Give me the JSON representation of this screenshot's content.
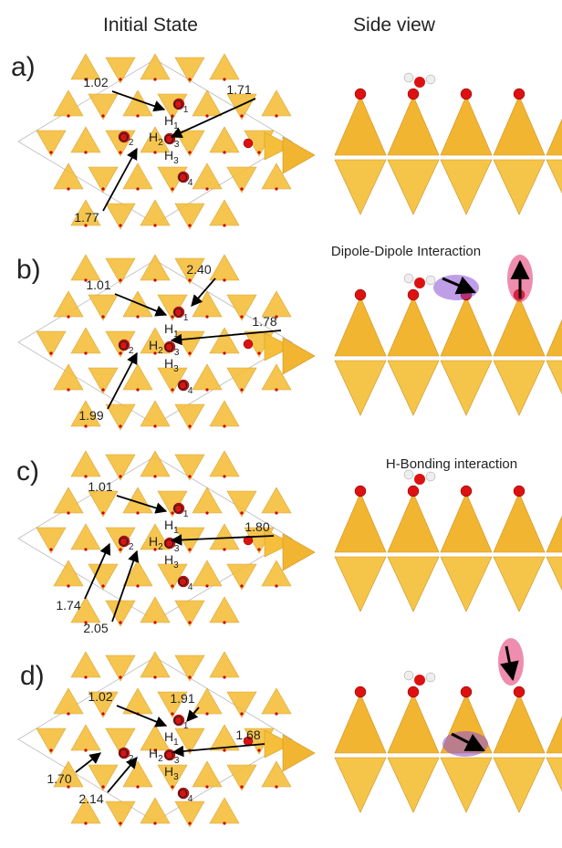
{
  "header": {
    "left": "Initial State",
    "right": "Side view"
  },
  "panels": [
    {
      "label": "a)",
      "distances": [
        "1.02",
        "1.71",
        "1.77"
      ],
      "atoms": [
        {
          "element": "O",
          "sub": "1"
        },
        {
          "element": "H",
          "sub": "1"
        },
        {
          "element": "O",
          "sub": "2"
        },
        {
          "element": "H",
          "sub": "2"
        },
        {
          "element": "O",
          "sub": "3"
        },
        {
          "element": "H",
          "sub": "3"
        },
        {
          "element": "O",
          "sub": "4"
        }
      ]
    },
    {
      "label": "b)",
      "distances": [
        "1.01",
        "2.40",
        "1.78",
        "1.99"
      ],
      "annotation": "Dipole-Dipole Interaction",
      "atoms": [
        {
          "element": "O",
          "sub": "1"
        },
        {
          "element": "H",
          "sub": "1"
        },
        {
          "element": "O",
          "sub": "2"
        },
        {
          "element": "H",
          "sub": "2"
        },
        {
          "element": "O",
          "sub": "3"
        },
        {
          "element": "H",
          "sub": "3"
        },
        {
          "element": "O",
          "sub": "4"
        }
      ]
    },
    {
      "label": "c)",
      "distances": [
        "1.01",
        "1.80",
        "1.74",
        "2.05"
      ],
      "annotation": "H-Bonding interaction",
      "atoms": [
        {
          "element": "O",
          "sub": "1"
        },
        {
          "element": "H",
          "sub": "1"
        },
        {
          "element": "O",
          "sub": "2"
        },
        {
          "element": "H",
          "sub": "2"
        },
        {
          "element": "O",
          "sub": "3"
        },
        {
          "element": "H",
          "sub": "3"
        },
        {
          "element": "O",
          "sub": "4"
        }
      ]
    },
    {
      "label": "d)",
      "distances": [
        "1.91",
        "1.02",
        "1.68",
        "1.70",
        "2.14"
      ],
      "atoms": [
        {
          "element": "O",
          "sub": "1"
        },
        {
          "element": "H",
          "sub": "1"
        },
        {
          "element": "O",
          "sub": "2"
        },
        {
          "element": "H",
          "sub": "2"
        },
        {
          "element": "O",
          "sub": "3"
        },
        {
          "element": "H",
          "sub": "3"
        },
        {
          "element": "O",
          "sub": "4"
        }
      ]
    }
  ]
}
